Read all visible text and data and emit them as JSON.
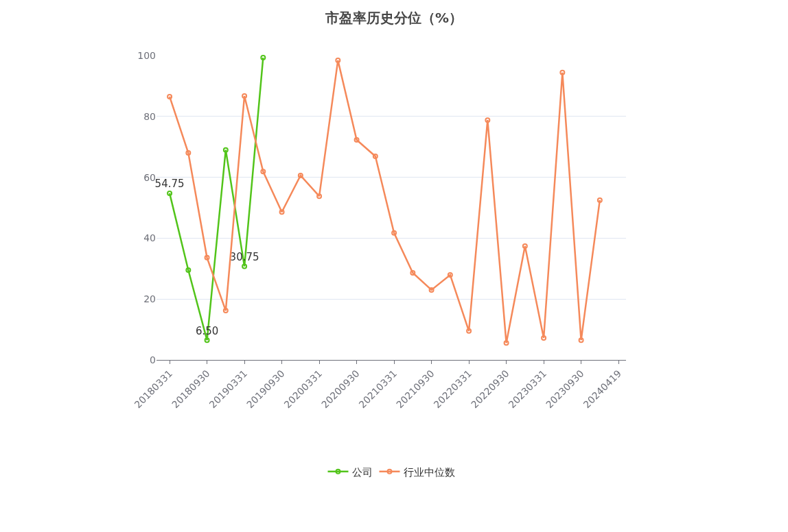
{
  "chart_data": {
    "type": "line",
    "title": "市盈率历史分位（%）",
    "categories": [
      "20180331",
      null,
      "20180930",
      null,
      "20190331",
      null,
      "20190930",
      null,
      "20200331",
      null,
      "20200930",
      null,
      "20210331",
      null,
      "20210930",
      null,
      "20220331",
      null,
      "20220930",
      null,
      "20230331",
      null,
      "20230930",
      null,
      "20240419"
    ],
    "series": [
      {
        "name": "公司",
        "color": "#52c41a",
        "values": [
          54.75,
          29.5,
          6.5,
          69.0,
          30.75,
          99.3,
          null,
          null,
          null,
          null,
          null,
          null,
          null,
          null,
          null,
          null,
          null,
          null,
          null,
          null,
          null,
          null,
          null,
          null,
          null
        ],
        "value_labels": [
          "54.75",
          null,
          "6.50",
          null,
          "30.75",
          null,
          null,
          null,
          null,
          null,
          null,
          null,
          null,
          null,
          null,
          null,
          null,
          null,
          null,
          null,
          null,
          null,
          null,
          null,
          null
        ]
      },
      {
        "name": "行业中位数",
        "color": "#f5895a",
        "values": [
          86.5,
          68.0,
          33.6,
          16.2,
          86.7,
          61.9,
          48.6,
          60.6,
          53.8,
          98.4,
          72.3,
          66.9,
          41.7,
          28.6,
          23.0,
          27.9,
          9.5,
          78.8,
          5.6,
          37.4,
          7.2,
          94.4,
          6.5,
          52.5,
          null
        ]
      }
    ],
    "ylim": [
      0,
      100
    ],
    "yticks": [
      0,
      20,
      40,
      60,
      80,
      100
    ],
    "grid": "y",
    "legend": "bottom",
    "marker": "circle",
    "line_style": "solid"
  }
}
